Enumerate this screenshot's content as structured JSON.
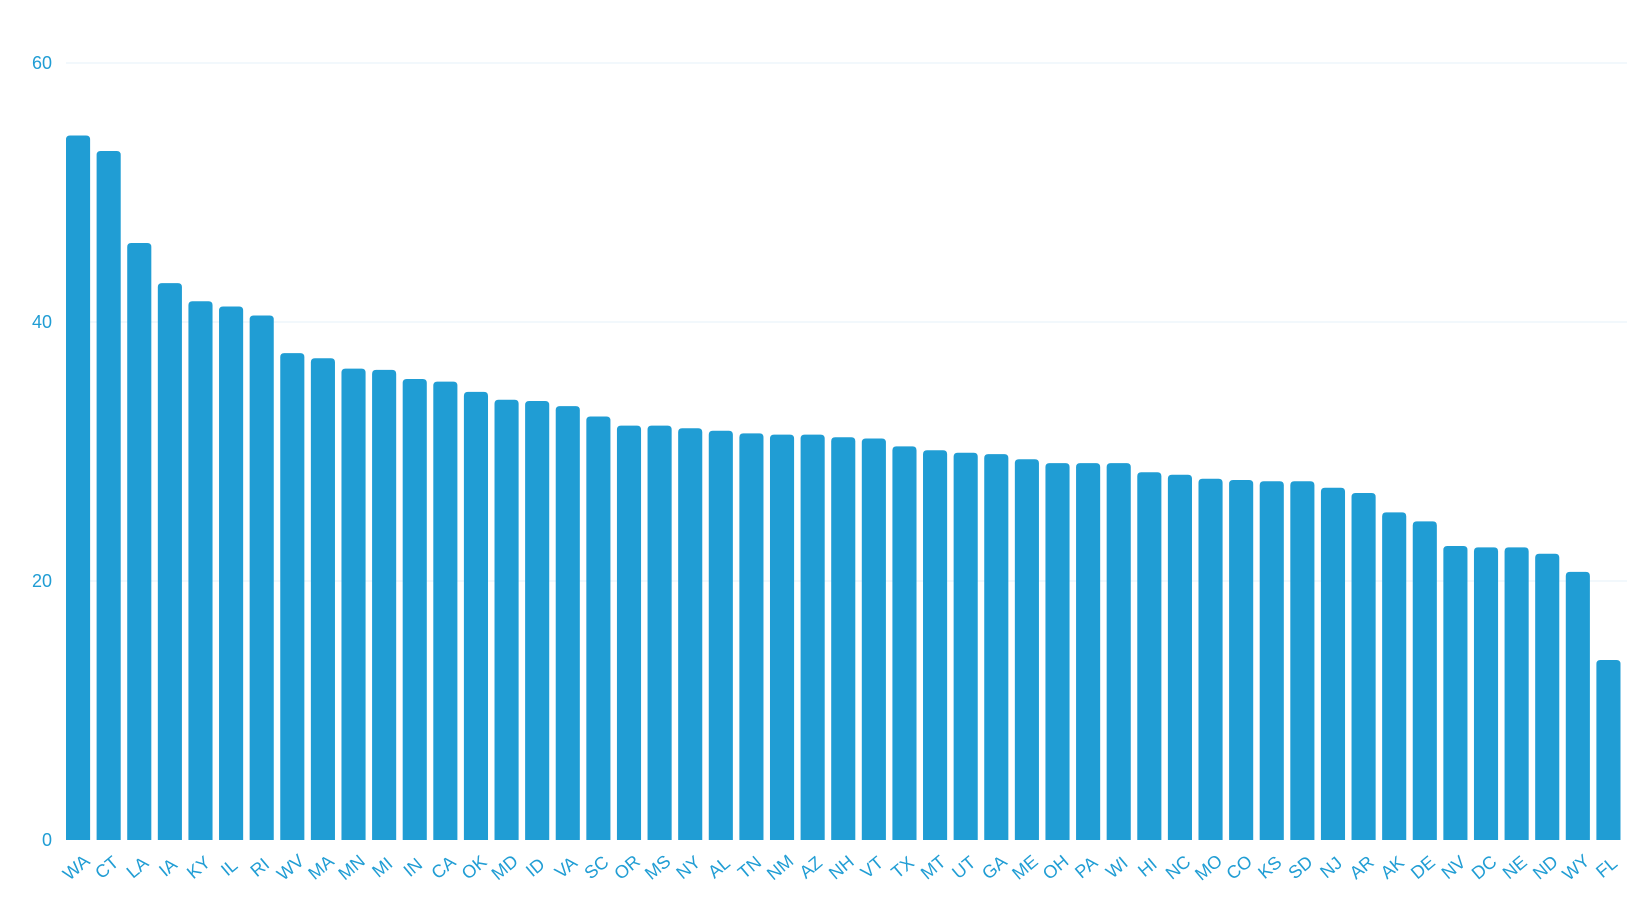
{
  "chart_data": {
    "type": "bar",
    "title": "",
    "xlabel": "",
    "ylabel": "",
    "ylim": [
      0,
      60
    ],
    "yticks": [
      0,
      20,
      40,
      60
    ],
    "grid": true,
    "legend": "none",
    "categories": [
      "WA",
      "CT",
      "LA",
      "IA",
      "KY",
      "IL",
      "RI",
      "WV",
      "MA",
      "MN",
      "MI",
      "IN",
      "CA",
      "OK",
      "MD",
      "ID",
      "VA",
      "SC",
      "OR",
      "MS",
      "NY",
      "AL",
      "TN",
      "NM",
      "AZ",
      "NH",
      "VT",
      "TX",
      "MT",
      "UT",
      "GA",
      "ME",
      "OH",
      "PA",
      "WI",
      "HI",
      "NC",
      "MO",
      "CO",
      "KS",
      "SD",
      "NJ",
      "AR",
      "AK",
      "DE",
      "NV",
      "DC",
      "NE",
      "ND",
      "WY",
      "FL"
    ],
    "values": [
      54.4,
      53.2,
      46.1,
      43.0,
      41.6,
      41.2,
      40.5,
      37.6,
      37.2,
      36.4,
      36.3,
      35.6,
      35.4,
      34.6,
      34.0,
      33.9,
      33.5,
      32.7,
      32.0,
      32.0,
      31.8,
      31.6,
      31.4,
      31.3,
      31.3,
      31.1,
      31.0,
      30.4,
      30.1,
      29.9,
      29.8,
      29.4,
      29.1,
      29.1,
      29.1,
      28.4,
      28.2,
      27.9,
      27.8,
      27.7,
      27.7,
      27.2,
      26.8,
      25.3,
      24.6,
      22.7,
      22.6,
      22.6,
      22.1,
      20.7,
      13.9
    ]
  },
  "colors": {
    "bar": "#209dd4",
    "axis_text": "#209dd4",
    "grid": "#e6f2f8"
  }
}
